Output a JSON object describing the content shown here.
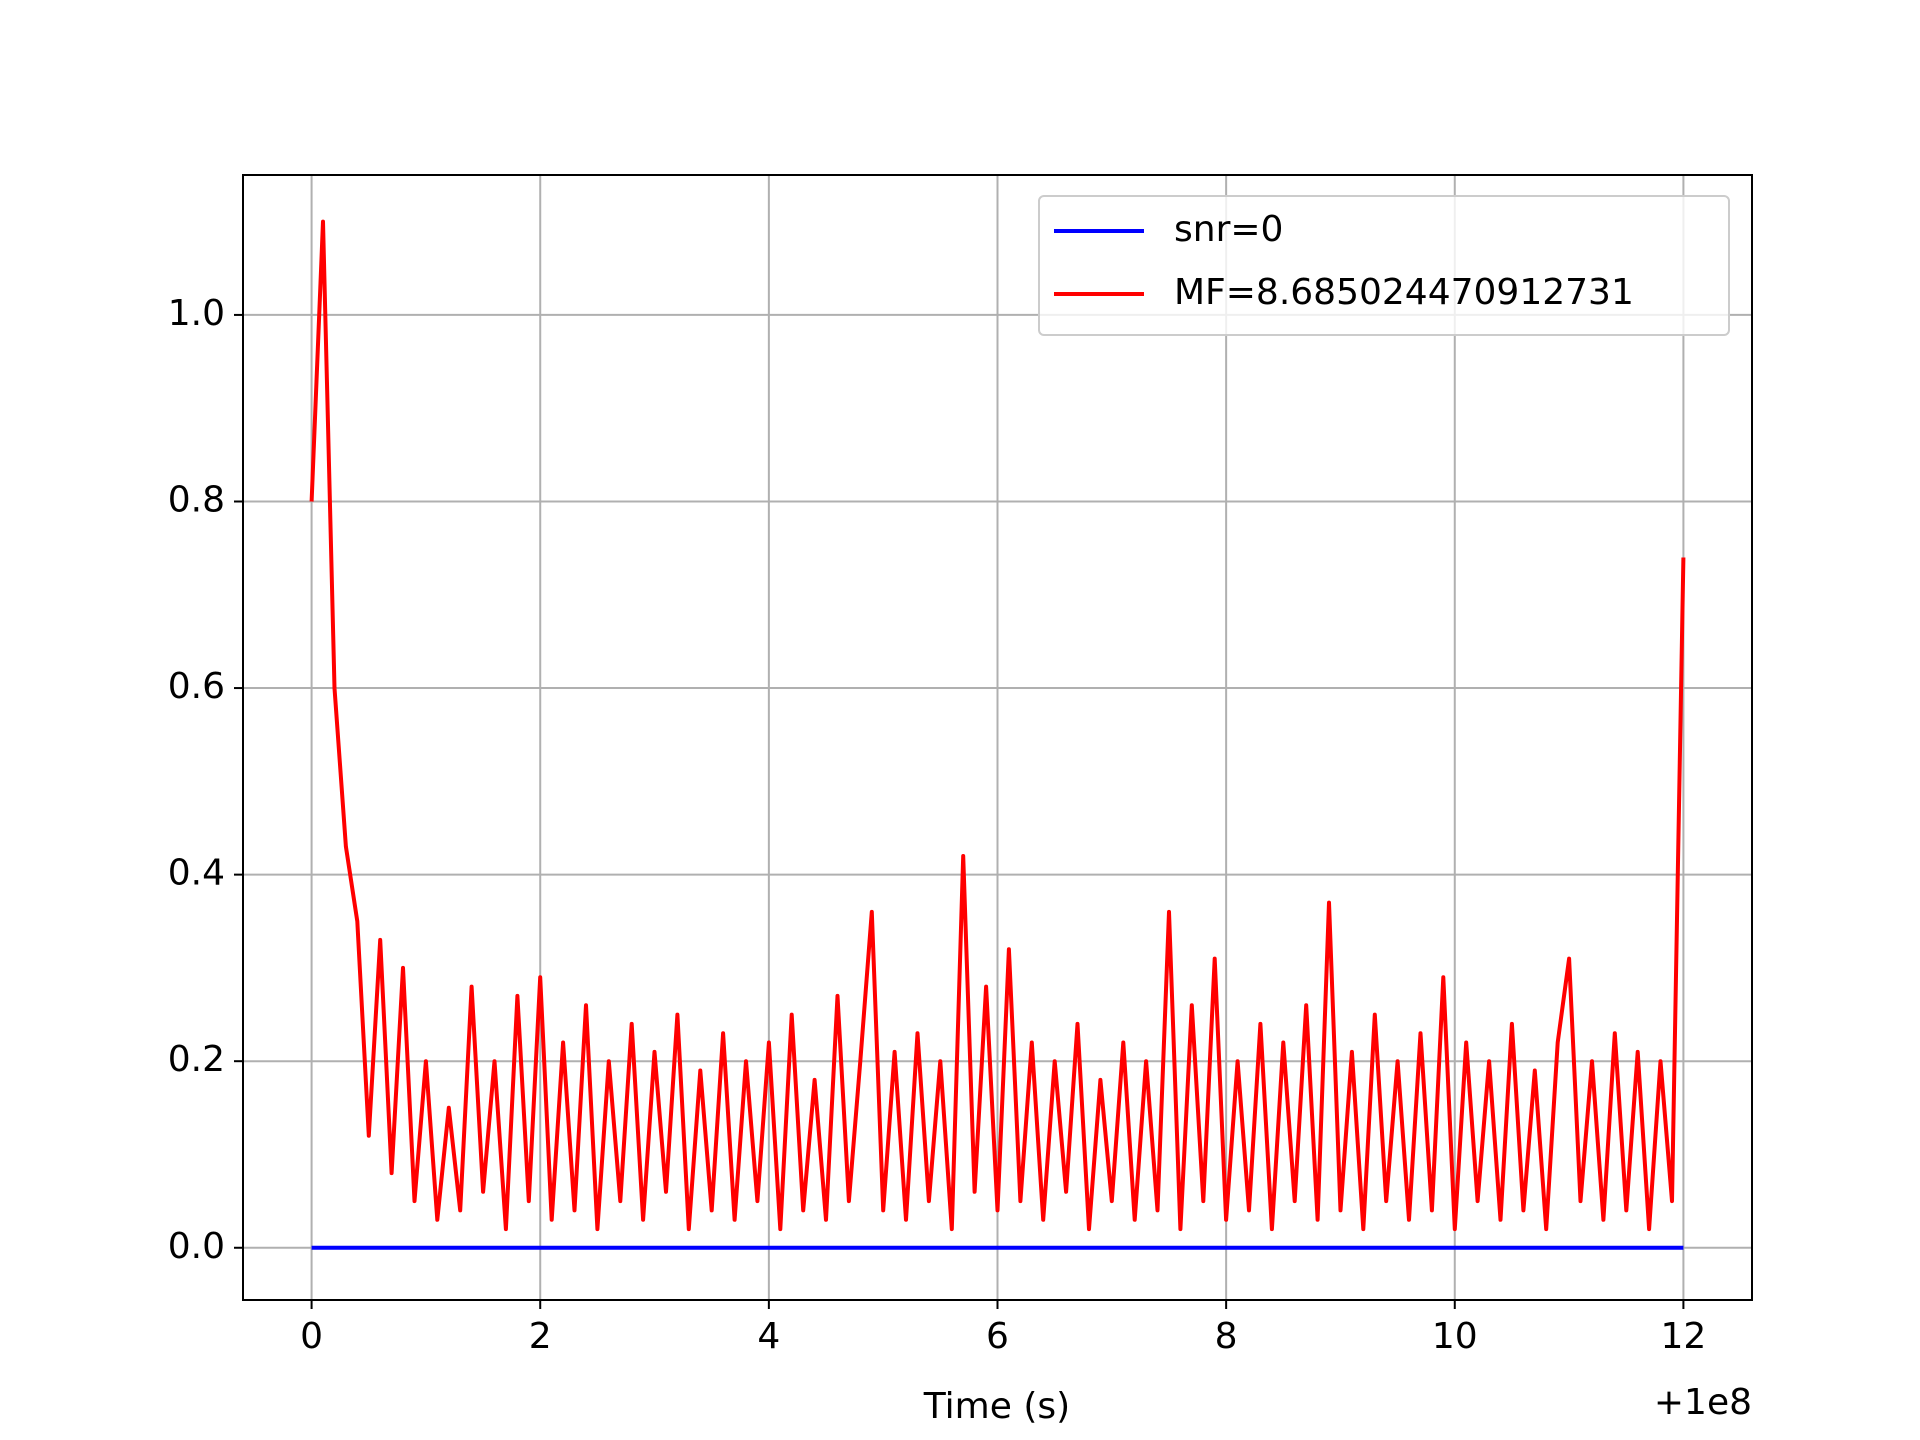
{
  "chart_data": {
    "type": "line",
    "xlabel": "Time (s)",
    "x_offset_label": "+1e8",
    "xlim": [
      -0.6,
      12.6
    ],
    "ylim": [
      -0.056,
      1.15
    ],
    "xticks": [
      0,
      2,
      4,
      6,
      8,
      10,
      12
    ],
    "yticks": [
      {
        "value": 0,
        "label": "0.0"
      },
      0.2,
      0.4,
      0.6,
      0.8,
      {
        "value": 1,
        "label": "1.0"
      }
    ],
    "grid": true,
    "legend": "upper right",
    "series": [
      {
        "name": "snr=0",
        "color": "#0000ff",
        "x": [
          0,
          12
        ],
        "values": [
          0,
          0
        ]
      },
      {
        "name": "MF=8.685024470912731",
        "color": "#ff0000",
        "x": [
          0,
          0.1,
          0.2,
          0.3,
          0.4,
          0.5,
          0.6,
          0.7,
          0.8,
          0.9,
          1,
          1.1,
          1.2,
          1.3,
          1.4,
          1.5,
          1.6,
          1.7,
          1.8,
          1.9,
          2,
          2.1,
          2.2,
          2.3,
          2.4,
          2.5,
          2.6,
          2.7,
          2.8,
          2.9,
          3,
          3.1,
          3.2,
          3.3,
          3.4,
          3.5,
          3.6,
          3.7,
          3.8,
          3.9,
          4,
          4.1,
          4.2,
          4.3,
          4.4,
          4.5,
          4.6,
          4.7,
          4.8,
          4.9,
          5,
          5.1,
          5.2,
          5.3,
          5.4,
          5.5,
          5.6,
          5.7,
          5.8,
          5.9,
          6,
          6.1,
          6.2,
          6.3,
          6.4,
          6.5,
          6.6,
          6.7,
          6.8,
          6.9,
          7,
          7.1,
          7.2,
          7.3,
          7.4,
          7.5,
          7.6,
          7.7,
          7.8,
          7.9,
          8,
          8.1,
          8.2,
          8.3,
          8.4,
          8.5,
          8.6,
          8.7,
          8.8,
          8.9,
          9,
          9.1,
          9.2,
          9.3,
          9.4,
          9.5,
          9.6,
          9.7,
          9.8,
          9.9,
          10,
          10.1,
          10.2,
          10.3,
          10.4,
          10.5,
          10.6,
          10.7,
          10.8,
          10.9,
          11,
          11.1,
          11.2,
          11.3,
          11.4,
          11.5,
          11.6,
          11.7,
          11.8,
          11.9,
          12
        ],
        "values": [
          0.8,
          1.1,
          0.6,
          0.43,
          0.35,
          0.12,
          0.33,
          0.08,
          0.3,
          0.05,
          0.2,
          0.03,
          0.15,
          0.04,
          0.28,
          0.06,
          0.2,
          0.02,
          0.27,
          0.05,
          0.29,
          0.03,
          0.22,
          0.04,
          0.26,
          0.02,
          0.2,
          0.05,
          0.24,
          0.03,
          0.21,
          0.06,
          0.25,
          0.02,
          0.19,
          0.04,
          0.23,
          0.03,
          0.2,
          0.05,
          0.22,
          0.02,
          0.25,
          0.04,
          0.18,
          0.03,
          0.27,
          0.05,
          0.2,
          0.36,
          0.04,
          0.21,
          0.03,
          0.23,
          0.05,
          0.2,
          0.02,
          0.42,
          0.06,
          0.28,
          0.04,
          0.32,
          0.05,
          0.22,
          0.03,
          0.2,
          0.06,
          0.24,
          0.02,
          0.18,
          0.05,
          0.22,
          0.03,
          0.2,
          0.04,
          0.36,
          0.02,
          0.26,
          0.05,
          0.31,
          0.03,
          0.2,
          0.04,
          0.24,
          0.02,
          0.22,
          0.05,
          0.26,
          0.03,
          0.37,
          0.04,
          0.21,
          0.02,
          0.25,
          0.05,
          0.2,
          0.03,
          0.23,
          0.04,
          0.29,
          0.02,
          0.22,
          0.05,
          0.2,
          0.03,
          0.24,
          0.04,
          0.19,
          0.02,
          0.22,
          0.31,
          0.05,
          0.2,
          0.03,
          0.23,
          0.04,
          0.21,
          0.02,
          0.2,
          0.05,
          0.74
        ]
      }
    ]
  }
}
